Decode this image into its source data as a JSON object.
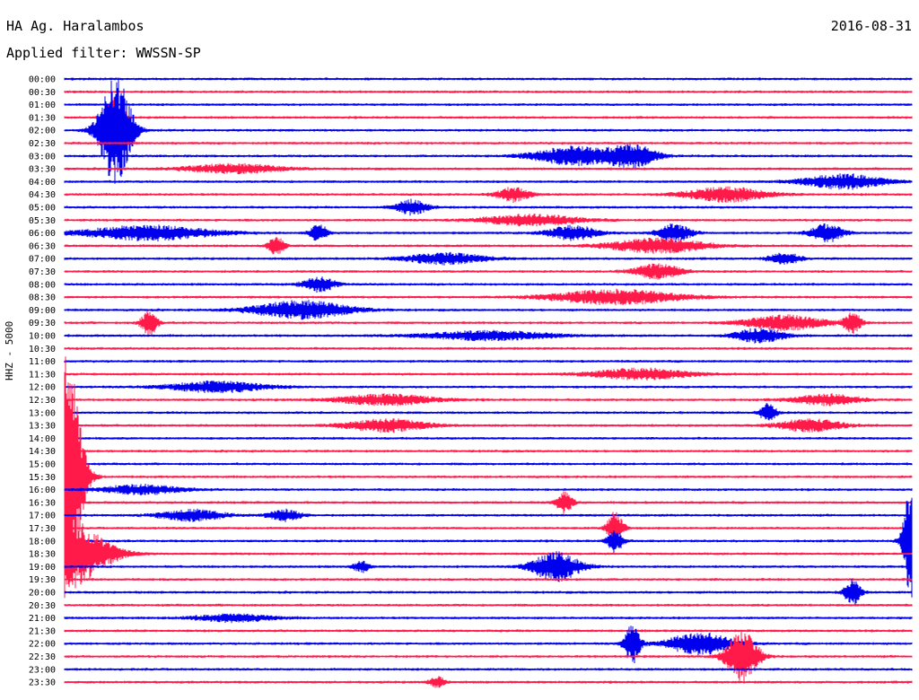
{
  "header": {
    "station": "HA Ag. Haralambos",
    "date": "2016-08-31",
    "filter_label": "Applied filter: WWSSN-SP",
    "channel": "HHZ - 5000"
  },
  "chart_data": {
    "type": "line",
    "ylabel": "HHZ - 5000",
    "row_labels": [
      "00:00",
      "00:30",
      "01:00",
      "01:30",
      "02:00",
      "02:30",
      "03:00",
      "03:30",
      "04:00",
      "04:30",
      "05:00",
      "05:30",
      "06:00",
      "06:30",
      "07:00",
      "07:30",
      "08:00",
      "08:30",
      "09:00",
      "09:30",
      "10:00",
      "10:30",
      "11:00",
      "11:30",
      "12:00",
      "12:30",
      "13:00",
      "13:30",
      "14:00",
      "14:30",
      "15:00",
      "15:30",
      "16:00",
      "16:30",
      "17:00",
      "17:30",
      "18:00",
      "18:30",
      "19:00",
      "19:30",
      "20:00",
      "20:30",
      "21:00",
      "21:30",
      "22:00",
      "22:30",
      "23:00",
      "23:30"
    ],
    "colors": [
      "#0000ee",
      "#ff1a4a"
    ],
    "grid": false,
    "events": [
      {
        "row": 4,
        "pos": 0.06,
        "amp": 60,
        "width": 0.02
      },
      {
        "row": 3,
        "pos": 0.06,
        "amp": 30,
        "width": 0.01
      },
      {
        "row": 6,
        "pos": 0.6,
        "amp": 10,
        "width": 0.05
      },
      {
        "row": 6,
        "pos": 0.67,
        "amp": 12,
        "width": 0.03
      },
      {
        "row": 7,
        "pos": 0.2,
        "amp": 5,
        "width": 0.06
      },
      {
        "row": 8,
        "pos": 0.92,
        "amp": 8,
        "width": 0.05
      },
      {
        "row": 9,
        "pos": 0.53,
        "amp": 8,
        "width": 0.02
      },
      {
        "row": 9,
        "pos": 0.78,
        "amp": 8,
        "width": 0.05
      },
      {
        "row": 10,
        "pos": 0.41,
        "amp": 8,
        "width": 0.02
      },
      {
        "row": 11,
        "pos": 0.55,
        "amp": 6,
        "width": 0.06
      },
      {
        "row": 12,
        "pos": 0.1,
        "amp": 8,
        "width": 0.08
      },
      {
        "row": 12,
        "pos": 0.3,
        "amp": 10,
        "width": 0.01
      },
      {
        "row": 12,
        "pos": 0.6,
        "amp": 8,
        "width": 0.03
      },
      {
        "row": 12,
        "pos": 0.72,
        "amp": 10,
        "width": 0.02
      },
      {
        "row": 12,
        "pos": 0.9,
        "amp": 10,
        "width": 0.02
      },
      {
        "row": 13,
        "pos": 0.25,
        "amp": 10,
        "width": 0.01
      },
      {
        "row": 13,
        "pos": 0.7,
        "amp": 8,
        "width": 0.06
      },
      {
        "row": 14,
        "pos": 0.45,
        "amp": 6,
        "width": 0.05
      },
      {
        "row": 14,
        "pos": 0.85,
        "amp": 6,
        "width": 0.02
      },
      {
        "row": 15,
        "pos": 0.7,
        "amp": 8,
        "width": 0.03
      },
      {
        "row": 16,
        "pos": 0.3,
        "amp": 8,
        "width": 0.02
      },
      {
        "row": 17,
        "pos": 0.65,
        "amp": 8,
        "width": 0.08
      },
      {
        "row": 18,
        "pos": 0.28,
        "amp": 10,
        "width": 0.06
      },
      {
        "row": 19,
        "pos": 0.1,
        "amp": 14,
        "width": 0.01
      },
      {
        "row": 19,
        "pos": 0.85,
        "amp": 8,
        "width": 0.05
      },
      {
        "row": 19,
        "pos": 0.93,
        "amp": 12,
        "width": 0.01
      },
      {
        "row": 20,
        "pos": 0.5,
        "amp": 5,
        "width": 0.08
      },
      {
        "row": 20,
        "pos": 0.82,
        "amp": 8,
        "width": 0.03
      },
      {
        "row": 23,
        "pos": 0.68,
        "amp": 6,
        "width": 0.06
      },
      {
        "row": 24,
        "pos": 0.18,
        "amp": 6,
        "width": 0.06
      },
      {
        "row": 25,
        "pos": 0.38,
        "amp": 6,
        "width": 0.06
      },
      {
        "row": 25,
        "pos": 0.9,
        "amp": 6,
        "width": 0.04
      },
      {
        "row": 26,
        "pos": 0.83,
        "amp": 10,
        "width": 0.01
      },
      {
        "row": 27,
        "pos": 0.38,
        "amp": 7,
        "width": 0.05
      },
      {
        "row": 27,
        "pos": 0.88,
        "amp": 7,
        "width": 0.04
      },
      {
        "row": 31,
        "pos": 0.0,
        "amp": 150,
        "width": 0.02
      },
      {
        "row": 32,
        "pos": 0.09,
        "amp": 5,
        "width": 0.05
      },
      {
        "row": 33,
        "pos": 0.59,
        "amp": 12,
        "width": 0.01
      },
      {
        "row": 34,
        "pos": 0.15,
        "amp": 6,
        "width": 0.04
      },
      {
        "row": 34,
        "pos": 0.26,
        "amp": 6,
        "width": 0.02
      },
      {
        "row": 35,
        "pos": 0.65,
        "amp": 18,
        "width": 0.01
      },
      {
        "row": 36,
        "pos": 0.65,
        "amp": 12,
        "width": 0.01
      },
      {
        "row": 36,
        "pos": 1.0,
        "amp": 70,
        "width": 0.01
      },
      {
        "row": 37,
        "pos": 0.0,
        "amp": 40,
        "width": 0.05
      },
      {
        "row": 38,
        "pos": 0.58,
        "amp": 16,
        "width": 0.03
      },
      {
        "row": 38,
        "pos": 0.35,
        "amp": 6,
        "width": 0.01
      },
      {
        "row": 40,
        "pos": 0.93,
        "amp": 14,
        "width": 0.01
      },
      {
        "row": 42,
        "pos": 0.2,
        "amp": 4,
        "width": 0.05
      },
      {
        "row": 44,
        "pos": 0.67,
        "amp": 22,
        "width": 0.01
      },
      {
        "row": 44,
        "pos": 0.75,
        "amp": 12,
        "width": 0.04
      },
      {
        "row": 45,
        "pos": 0.8,
        "amp": 28,
        "width": 0.02
      },
      {
        "row": 47,
        "pos": 0.44,
        "amp": 6,
        "width": 0.01
      }
    ]
  }
}
